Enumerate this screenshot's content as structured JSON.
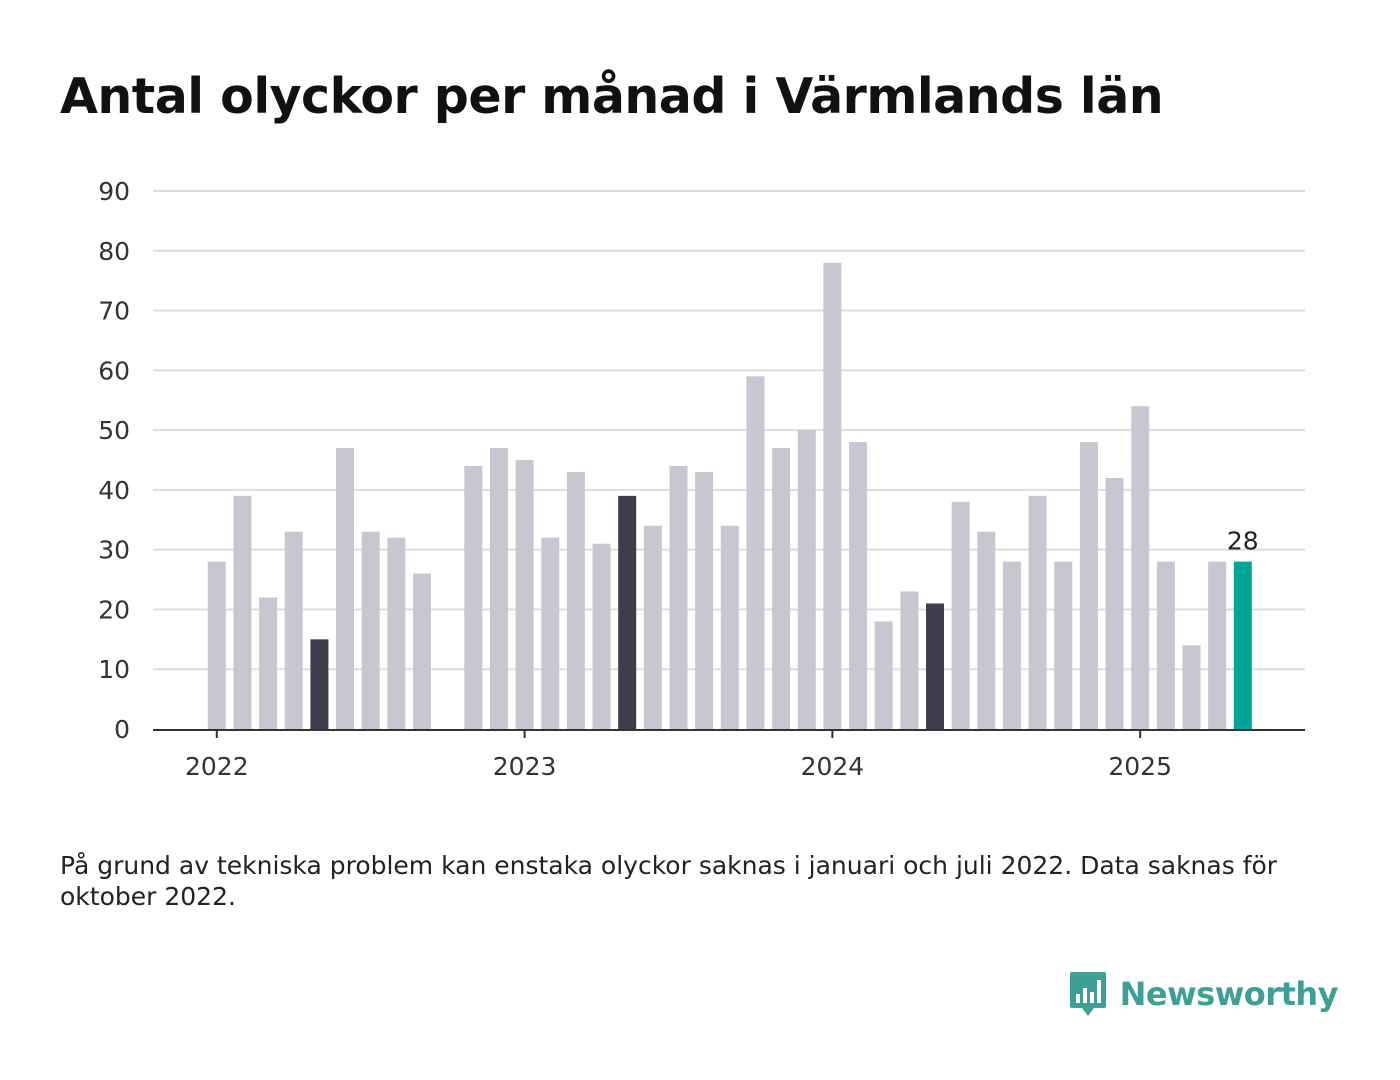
{
  "title": "Antal olyckor per månad i Värmlands län",
  "note": "På grund av tekniska problem kan enstaka olyckor saknas i januari och juli 2022. Data saknas för oktober 2022.",
  "brand": {
    "name": "Newsworthy",
    "icon": "newsworthy-logo-icon",
    "color": "#3e9f97"
  },
  "colors": {
    "default_bar": "#c8c7d1",
    "highlight_bar": "#3f3e4c",
    "latest_bar": "#00a59a",
    "grid": "#dddddd",
    "axis": "#333333"
  },
  "chart_data": {
    "type": "bar",
    "title": "Antal olyckor per månad i Värmlands län",
    "xlabel": "",
    "ylabel": "",
    "ylim": [
      0,
      90
    ],
    "yticks": [
      0,
      10,
      20,
      30,
      40,
      50,
      60,
      70,
      80,
      90
    ],
    "xticks": [
      {
        "label": "2022",
        "date": "2022-01"
      },
      {
        "label": "2023",
        "date": "2023-01"
      },
      {
        "label": "2024",
        "date": "2024-01"
      },
      {
        "label": "2025",
        "date": "2025-01"
      }
    ],
    "grid": true,
    "data": [
      {
        "date": "2022-01",
        "value": 28,
        "style": "default"
      },
      {
        "date": "2022-02",
        "value": 39,
        "style": "default"
      },
      {
        "date": "2022-03",
        "value": 22,
        "style": "default"
      },
      {
        "date": "2022-04",
        "value": 33,
        "style": "default"
      },
      {
        "date": "2022-05",
        "value": 15,
        "style": "highlight"
      },
      {
        "date": "2022-06",
        "value": 47,
        "style": "default"
      },
      {
        "date": "2022-07",
        "value": 33,
        "style": "default"
      },
      {
        "date": "2022-08",
        "value": 32,
        "style": "default"
      },
      {
        "date": "2022-09",
        "value": 26,
        "style": "default"
      },
      {
        "date": "2022-10",
        "value": null,
        "style": "missing"
      },
      {
        "date": "2022-11",
        "value": 44,
        "style": "default"
      },
      {
        "date": "2022-12",
        "value": 47,
        "style": "default"
      },
      {
        "date": "2023-01",
        "value": 45,
        "style": "default"
      },
      {
        "date": "2023-02",
        "value": 32,
        "style": "default"
      },
      {
        "date": "2023-03",
        "value": 43,
        "style": "default"
      },
      {
        "date": "2023-04",
        "value": 31,
        "style": "default"
      },
      {
        "date": "2023-05",
        "value": 39,
        "style": "highlight"
      },
      {
        "date": "2023-06",
        "value": 34,
        "style": "default"
      },
      {
        "date": "2023-07",
        "value": 44,
        "style": "default"
      },
      {
        "date": "2023-08",
        "value": 43,
        "style": "default"
      },
      {
        "date": "2023-09",
        "value": 34,
        "style": "default"
      },
      {
        "date": "2023-10",
        "value": 59,
        "style": "default"
      },
      {
        "date": "2023-11",
        "value": 47,
        "style": "default"
      },
      {
        "date": "2023-12",
        "value": 50,
        "style": "default"
      },
      {
        "date": "2024-01",
        "value": 78,
        "style": "default"
      },
      {
        "date": "2024-02",
        "value": 48,
        "style": "default"
      },
      {
        "date": "2024-03",
        "value": 18,
        "style": "default"
      },
      {
        "date": "2024-04",
        "value": 23,
        "style": "default"
      },
      {
        "date": "2024-05",
        "value": 21,
        "style": "highlight"
      },
      {
        "date": "2024-06",
        "value": 38,
        "style": "default"
      },
      {
        "date": "2024-07",
        "value": 33,
        "style": "default"
      },
      {
        "date": "2024-08",
        "value": 28,
        "style": "default"
      },
      {
        "date": "2024-09",
        "value": 39,
        "style": "default"
      },
      {
        "date": "2024-10",
        "value": 28,
        "style": "default"
      },
      {
        "date": "2024-11",
        "value": 48,
        "style": "default"
      },
      {
        "date": "2024-12",
        "value": 42,
        "style": "default"
      },
      {
        "date": "2025-01",
        "value": 54,
        "style": "default"
      },
      {
        "date": "2025-02",
        "value": 28,
        "style": "default"
      },
      {
        "date": "2025-03",
        "value": 14,
        "style": "default"
      },
      {
        "date": "2025-04",
        "value": 28,
        "style": "default"
      },
      {
        "date": "2025-05",
        "value": 28,
        "style": "latest",
        "label": "28"
      }
    ]
  }
}
